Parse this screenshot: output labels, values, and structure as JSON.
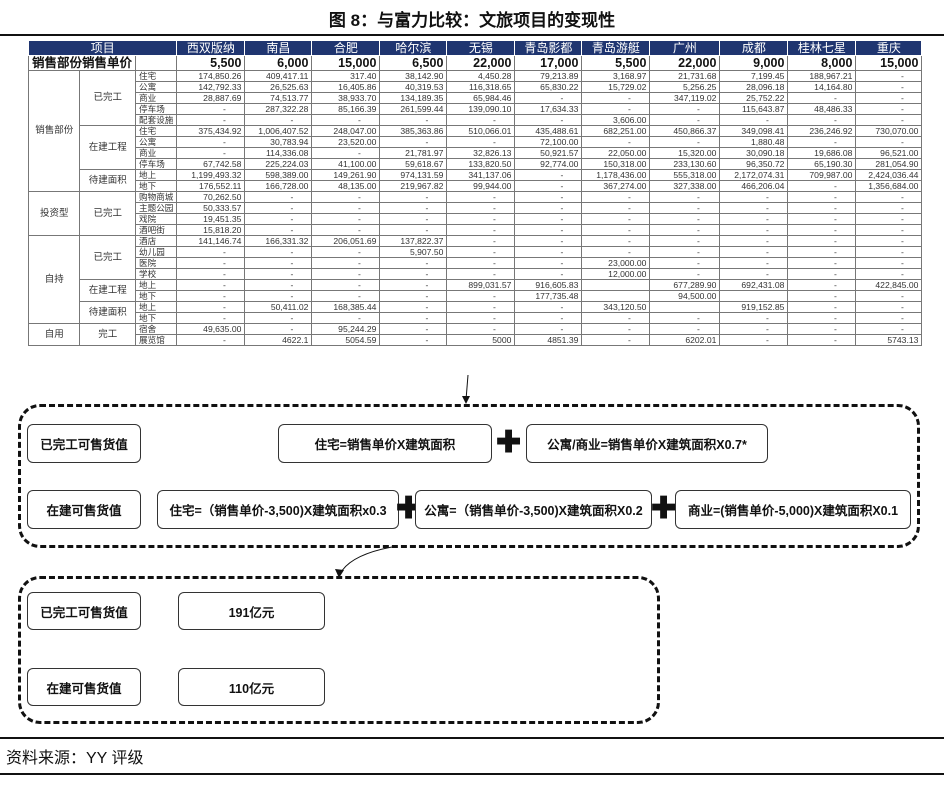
{
  "title": "图 8：与富力比较：文旅项目的变现性",
  "table": {
    "header_label": "项目",
    "cities": [
      "西双版纳",
      "南昌",
      "合肥",
      "哈尔滨",
      "无锡",
      "青岛影都",
      "青岛游艇",
      "广州",
      "成都",
      "桂林七星",
      "重庆"
    ],
    "price_label": "销售部份销售单价",
    "prices": [
      "5,500",
      "6,000",
      "15,000",
      "6,500",
      "22,000",
      "17,000",
      "5,500",
      "22,000",
      "9,000",
      "8,000",
      "15,000"
    ],
    "groups": [
      {
        "name": "销售部份",
        "subs": [
          {
            "name": "已完工",
            "items": [
              {
                "name": "住宅",
                "values": [
                  "174,850.26",
                  "409,417.11",
                  "317.40",
                  "38,142.90",
                  "4,450.28",
                  "79,213.89",
                  "3,168.97",
                  "21,731.68",
                  "7,199.45",
                  "188,967.21",
                  "-"
                ]
              },
              {
                "name": "公寓",
                "values": [
                  "142,792.33",
                  "26,525.63",
                  "16,405.86",
                  "40,319.53",
                  "116,318.65",
                  "65,830.22",
                  "15,729.02",
                  "5,256.25",
                  "28,096.18",
                  "14,164.80",
                  "-"
                ]
              },
              {
                "name": "商业",
                "values": [
                  "28,887.69",
                  "74,513.77",
                  "38,933.70",
                  "134,189.35",
                  "65,984.46",
                  "-",
                  "-",
                  "347,119.02",
                  "25,752.22",
                  "-",
                  "-"
                ]
              },
              {
                "name": "停车场",
                "values": [
                  "-",
                  "287,322.28",
                  "85,166.39",
                  "261,599.44",
                  "139,090.10",
                  "17,634.33",
                  "-",
                  "-",
                  "115,643.87",
                  "48,486.33",
                  "-"
                ]
              },
              {
                "name": "配套设施",
                "values": [
                  "-",
                  "-",
                  "-",
                  "-",
                  "-",
                  "-",
                  "3,606.00",
                  "-",
                  "-",
                  "-",
                  "-"
                ]
              }
            ]
          },
          {
            "name": "在建工程",
            "items": [
              {
                "name": "住宅",
                "values": [
                  "375,434.92",
                  "1,006,407.52",
                  "248,047.00",
                  "385,363.86",
                  "510,066.01",
                  "435,488.61",
                  "682,251.00",
                  "450,866.37",
                  "349,098.41",
                  "236,246.92",
                  "730,070.00"
                ]
              },
              {
                "name": "公寓",
                "values": [
                  "-",
                  "30,783.94",
                  "23,520.00",
                  "-",
                  "-",
                  "72,100.00",
                  "-",
                  "-",
                  "1,880.48",
                  "-",
                  "-"
                ]
              },
              {
                "name": "商业",
                "values": [
                  "-",
                  "114,336.08",
                  "-",
                  "21,781.97",
                  "32,826.13",
                  "50,921.57",
                  "22,050.00",
                  "15,320.00",
                  "30,090.18",
                  "19,686.08",
                  "96,521.00"
                ]
              },
              {
                "name": "停车场",
                "values": [
                  "67,742.58",
                  "225,224.03",
                  "41,100.00",
                  "59,618.67",
                  "133,820.50",
                  "92,774.00",
                  "150,318.00",
                  "233,130.60",
                  "96,350.72",
                  "65,190.30",
                  "281,054.90"
                ]
              }
            ]
          },
          {
            "name": "待建面积",
            "items": [
              {
                "name": "地上",
                "values": [
                  "1,199,493.32",
                  "598,389.00",
                  "149,261.90",
                  "974,131.59",
                  "341,137.06",
                  "-",
                  "1,178,436.00",
                  "555,318.00",
                  "2,172,074.31",
                  "709,987.00",
                  "2,424,036.44"
                ]
              },
              {
                "name": "地下",
                "values": [
                  "176,552.11",
                  "166,728.00",
                  "48,135.00",
                  "219,967.82",
                  "99,944.00",
                  "-",
                  "367,274.00",
                  "327,338.00",
                  "466,206.04",
                  "-",
                  "1,356,684.00"
                ]
              }
            ]
          }
        ]
      },
      {
        "name": "投资型",
        "subs": [
          {
            "name": "已完工",
            "items": [
              {
                "name": "购物商城",
                "values": [
                  "70,262.50",
                  "-",
                  "-",
                  "-",
                  "-",
                  "-",
                  "-",
                  "-",
                  "-",
                  "-",
                  "-"
                ]
              },
              {
                "name": "主题公园",
                "values": [
                  "50,333.57",
                  "-",
                  "-",
                  "-",
                  "-",
                  "-",
                  "-",
                  "-",
                  "-",
                  "-",
                  "-"
                ]
              },
              {
                "name": "戏院",
                "values": [
                  "19,451.35",
                  "-",
                  "-",
                  "-",
                  "-",
                  "-",
                  "-",
                  "-",
                  "-",
                  "-",
                  "-"
                ]
              },
              {
                "name": "酒吧街",
                "values": [
                  "15,818.20",
                  "-",
                  "-",
                  "-",
                  "-",
                  "-",
                  "-",
                  "-",
                  "-",
                  "-",
                  "-"
                ]
              }
            ]
          }
        ]
      },
      {
        "name": "自持",
        "subs": [
          {
            "name": "已完工",
            "items": [
              {
                "name": "酒店",
                "values": [
                  "141,146.74",
                  "166,331.32",
                  "206,051.69",
                  "137,822.37",
                  "-",
                  "-",
                  "-",
                  "-",
                  "-",
                  "-",
                  "-"
                ]
              },
              {
                "name": "幼儿园",
                "values": [
                  "-",
                  "-",
                  "-",
                  "5,907.50",
                  "-",
                  "-",
                  "-",
                  "-",
                  "-",
                  "-",
                  "-"
                ]
              },
              {
                "name": "医院",
                "values": [
                  "-",
                  "-",
                  "-",
                  "-",
                  "-",
                  "-",
                  "23,000.00",
                  "-",
                  "-",
                  "-",
                  "-"
                ]
              },
              {
                "name": "学校",
                "values": [
                  "-",
                  "-",
                  "-",
                  "-",
                  "-",
                  "-",
                  "12,000.00",
                  "-",
                  "-",
                  "-",
                  "-"
                ]
              }
            ]
          },
          {
            "name": "在建工程",
            "items": [
              {
                "name": "地上",
                "values": [
                  "-",
                  "-",
                  "-",
                  "-",
                  "899,031.57",
                  "916,605.83",
                  "",
                  "677,289.90",
                  "692,431.08",
                  "-",
                  "422,845.00"
                ]
              },
              {
                "name": "地下",
                "values": [
                  "-",
                  "-",
                  "-",
                  "-",
                  "-",
                  "177,735.48",
                  "",
                  "94,500.00",
                  "",
                  "-",
                  "-"
                ]
              }
            ]
          },
          {
            "name": "待建面积",
            "items": [
              {
                "name": "地上",
                "values": [
                  "-",
                  "50,411.02",
                  "168,385.44",
                  "-",
                  "-",
                  "-",
                  "343,120.50",
                  "",
                  "919,152.85",
                  "-",
                  "-"
                ]
              },
              {
                "name": "地下",
                "values": [
                  "-",
                  "-",
                  "-",
                  "-",
                  "-",
                  "-",
                  "-",
                  "-",
                  "-",
                  "-",
                  "-"
                ]
              }
            ]
          }
        ]
      },
      {
        "name": "自用",
        "subs": [
          {
            "name": "完工",
            "items": [
              {
                "name": "宿舍",
                "values": [
                  "49,635.00",
                  "-",
                  "95,244.29",
                  "-",
                  "-",
                  "-",
                  "-",
                  "-",
                  "-",
                  "-",
                  "-"
                ]
              },
              {
                "name": "展览馆",
                "values": [
                  "-",
                  "4622.1",
                  "5054.59",
                  "-",
                  "5000",
                  "4851.39",
                  "-",
                  "6202.01",
                  "-",
                  "-",
                  "5743.13"
                ]
              }
            ]
          }
        ]
      }
    ]
  },
  "formula": {
    "completed_label": "已完工可售货值",
    "completed_residential": "住宅=销售单价X建筑面积",
    "completed_apartment_commercial": "公寓/商业=销售单价X建筑面积X0.7*",
    "construction_label": "在建可售货值",
    "construction_residential": "住宅=（销售单价-3,500)X建筑面积x0.3",
    "construction_apartment": "公寓=（销售单价-3,500)X建筑面积X0.2",
    "construction_commercial": "商业=(销售单价-5,000)X建筑面积X0.1",
    "plus": "✚"
  },
  "result": {
    "completed_label": "已完工可售货值",
    "completed_value": "191亿元",
    "construction_label": "在建可售货值",
    "construction_value": "110亿元"
  },
  "source": "资料来源：YY 评级",
  "colors": {
    "header_bg": "#1f3570",
    "header_text": "#ffffff"
  }
}
